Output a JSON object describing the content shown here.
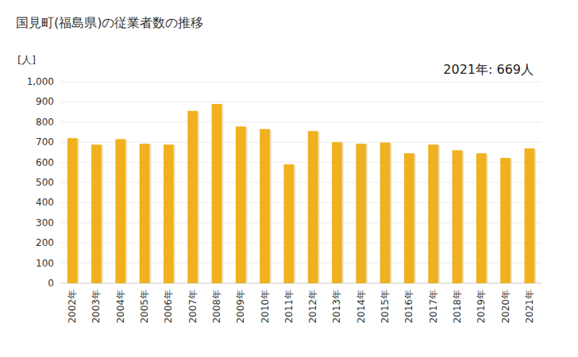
{
  "chart_data": {
    "type": "bar",
    "title": "国見町(福島県)の従業者数の推移",
    "y_label": "[人]",
    "annotation": "2021年: 669人",
    "categories": [
      "2002年",
      "2003年",
      "2004年",
      "2005年",
      "2006年",
      "2007年",
      "2008年",
      "2009年",
      "2010年",
      "2011年",
      "2012年",
      "2013年",
      "2014年",
      "2015年",
      "2016年",
      "2017年",
      "2018年",
      "2019年",
      "2020年",
      "2021年"
    ],
    "values": [
      720,
      688,
      715,
      692,
      688,
      855,
      890,
      778,
      765,
      590,
      755,
      700,
      692,
      698,
      645,
      688,
      660,
      645,
      622,
      669
    ],
    "color": "#efb11d",
    "ylim": [
      0,
      1000
    ],
    "yticks": [
      0,
      100,
      200,
      300,
      400,
      500,
      600,
      700,
      800,
      900,
      {
        "value": 1000,
        "label": "1,000"
      }
    ],
    "grid": true
  }
}
